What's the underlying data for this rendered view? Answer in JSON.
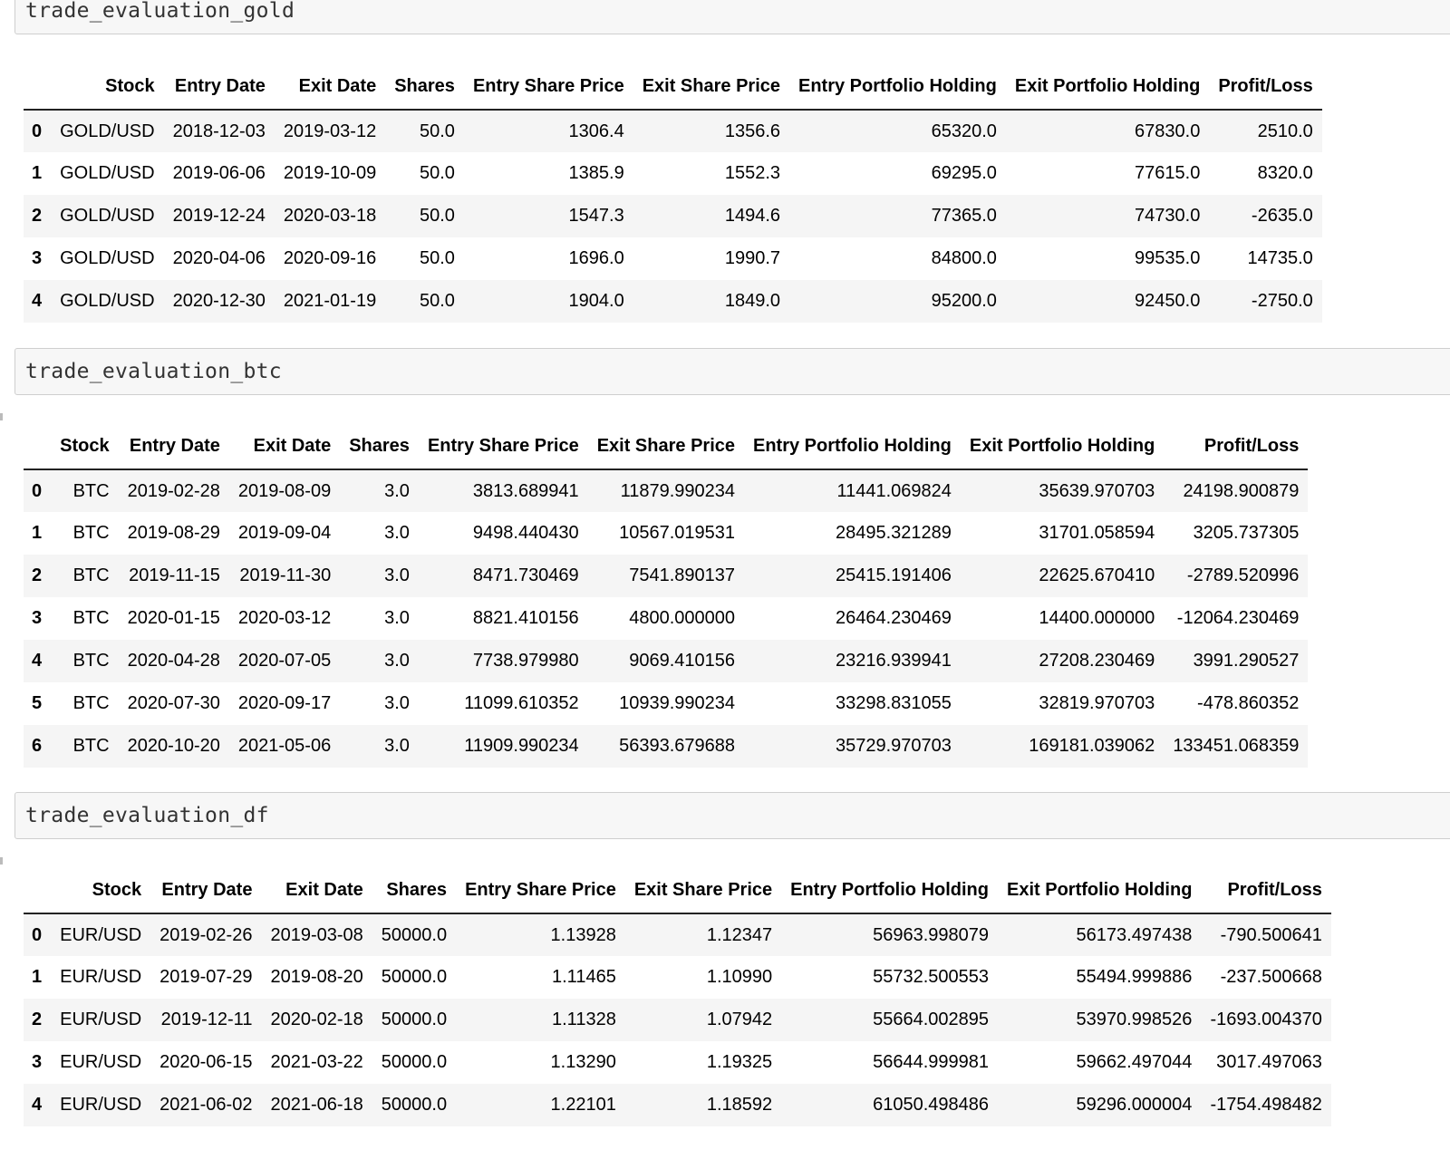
{
  "cells": [
    {
      "code": "trade_evaluation_gold",
      "table": {
        "columns": [
          "",
          "Stock",
          "Entry Date",
          "Exit Date",
          "Shares",
          "Entry Share Price",
          "Exit Share Price",
          "Entry Portfolio Holding",
          "Exit Portfolio Holding",
          "Profit/Loss"
        ],
        "rows": [
          [
            "0",
            "GOLD/USD",
            "2018-12-03",
            "2019-03-12",
            "50.0",
            "1306.4",
            "1356.6",
            "65320.0",
            "67830.0",
            "2510.0"
          ],
          [
            "1",
            "GOLD/USD",
            "2019-06-06",
            "2019-10-09",
            "50.0",
            "1385.9",
            "1552.3",
            "69295.0",
            "77615.0",
            "8320.0"
          ],
          [
            "2",
            "GOLD/USD",
            "2019-12-24",
            "2020-03-18",
            "50.0",
            "1547.3",
            "1494.6",
            "77365.0",
            "74730.0",
            "-2635.0"
          ],
          [
            "3",
            "GOLD/USD",
            "2020-04-06",
            "2020-09-16",
            "50.0",
            "1696.0",
            "1990.7",
            "84800.0",
            "99535.0",
            "14735.0"
          ],
          [
            "4",
            "GOLD/USD",
            "2020-12-30",
            "2021-01-19",
            "50.0",
            "1904.0",
            "1849.0",
            "95200.0",
            "92450.0",
            "-2750.0"
          ]
        ]
      }
    },
    {
      "code": "trade_evaluation_btc",
      "table": {
        "columns": [
          "",
          "Stock",
          "Entry Date",
          "Exit Date",
          "Shares",
          "Entry Share Price",
          "Exit Share Price",
          "Entry Portfolio Holding",
          "Exit Portfolio Holding",
          "Profit/Loss"
        ],
        "rows": [
          [
            "0",
            "BTC",
            "2019-02-28",
            "2019-08-09",
            "3.0",
            "3813.689941",
            "11879.990234",
            "11441.069824",
            "35639.970703",
            "24198.900879"
          ],
          [
            "1",
            "BTC",
            "2019-08-29",
            "2019-09-04",
            "3.0",
            "9498.440430",
            "10567.019531",
            "28495.321289",
            "31701.058594",
            "3205.737305"
          ],
          [
            "2",
            "BTC",
            "2019-11-15",
            "2019-11-30",
            "3.0",
            "8471.730469",
            "7541.890137",
            "25415.191406",
            "22625.670410",
            "-2789.520996"
          ],
          [
            "3",
            "BTC",
            "2020-01-15",
            "2020-03-12",
            "3.0",
            "8821.410156",
            "4800.000000",
            "26464.230469",
            "14400.000000",
            "-12064.230469"
          ],
          [
            "4",
            "BTC",
            "2020-04-28",
            "2020-07-05",
            "3.0",
            "7738.979980",
            "9069.410156",
            "23216.939941",
            "27208.230469",
            "3991.290527"
          ],
          [
            "5",
            "BTC",
            "2020-07-30",
            "2020-09-17",
            "3.0",
            "11099.610352",
            "10939.990234",
            "33298.831055",
            "32819.970703",
            "-478.860352"
          ],
          [
            "6",
            "BTC",
            "2020-10-20",
            "2021-05-06",
            "3.0",
            "11909.990234",
            "56393.679688",
            "35729.970703",
            "169181.039062",
            "133451.068359"
          ]
        ]
      }
    },
    {
      "code": "trade_evaluation_df",
      "table": {
        "columns": [
          "",
          "Stock",
          "Entry Date",
          "Exit Date",
          "Shares",
          "Entry Share Price",
          "Exit Share Price",
          "Entry Portfolio Holding",
          "Exit Portfolio Holding",
          "Profit/Loss"
        ],
        "rows": [
          [
            "0",
            "EUR/USD",
            "2019-02-26",
            "2019-03-08",
            "50000.0",
            "1.13928",
            "1.12347",
            "56963.998079",
            "56173.497438",
            "-790.500641"
          ],
          [
            "1",
            "EUR/USD",
            "2019-07-29",
            "2019-08-20",
            "50000.0",
            "1.11465",
            "1.10990",
            "55732.500553",
            "55494.999886",
            "-237.500668"
          ],
          [
            "2",
            "EUR/USD",
            "2019-12-11",
            "2020-02-18",
            "50000.0",
            "1.11328",
            "1.07942",
            "55664.002895",
            "53970.998526",
            "-1693.004370"
          ],
          [
            "3",
            "EUR/USD",
            "2020-06-15",
            "2021-03-22",
            "50000.0",
            "1.13290",
            "1.19325",
            "56644.999981",
            "59662.497044",
            "3017.497063"
          ],
          [
            "4",
            "EUR/USD",
            "2021-06-02",
            "2021-06-18",
            "50000.0",
            "1.22101",
            "1.18592",
            "61050.498486",
            "59296.000004",
            "-1754.498482"
          ]
        ]
      }
    }
  ]
}
